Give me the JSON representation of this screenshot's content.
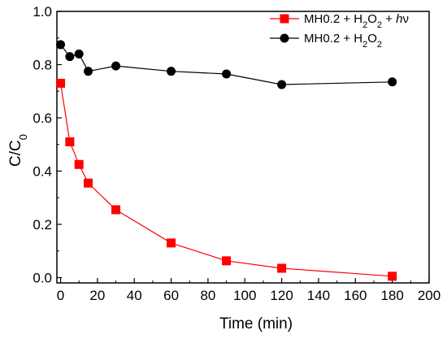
{
  "chart_data": {
    "type": "line",
    "xlabel": "Time (min)",
    "ylabel_main": "C/C",
    "ylabel_sub": "0",
    "xlim": [
      -2,
      200
    ],
    "ylim": [
      -0.02,
      1.0
    ],
    "xticks": [
      0,
      20,
      40,
      60,
      80,
      100,
      120,
      140,
      160,
      180,
      200
    ],
    "yticks": [
      0.0,
      0.2,
      0.4,
      0.6,
      0.8,
      1.0
    ],
    "xtick_labels": [
      "0",
      "20",
      "40",
      "60",
      "80",
      "100",
      "120",
      "140",
      "160",
      "180",
      "200"
    ],
    "ytick_labels": [
      "0.0",
      "0.2",
      "0.4",
      "0.6",
      "0.8",
      "1.0"
    ],
    "legend_position": "top-right",
    "grid": false,
    "series": [
      {
        "name": "MH0.2 + H2O2 + hν",
        "legend_parts": [
          "MH0.2 + H",
          "2",
          "O",
          "2",
          " + ",
          "h",
          "ν"
        ],
        "color": "#ff0000",
        "marker": "square",
        "x": [
          0,
          5,
          10,
          15,
          30,
          60,
          90,
          120,
          180
        ],
        "y": [
          0.73,
          0.51,
          0.425,
          0.355,
          0.255,
          0.13,
          0.063,
          0.035,
          0.005
        ]
      },
      {
        "name": "MH0.2 + H2O2",
        "legend_parts": [
          "MH0.2 + H",
          "2",
          "O",
          "2"
        ],
        "color": "#000000",
        "marker": "circle",
        "x": [
          0,
          5,
          10,
          15,
          30,
          60,
          90,
          120,
          180
        ],
        "y": [
          0.875,
          0.83,
          0.84,
          0.775,
          0.795,
          0.775,
          0.765,
          0.725,
          0.735
        ]
      }
    ]
  }
}
